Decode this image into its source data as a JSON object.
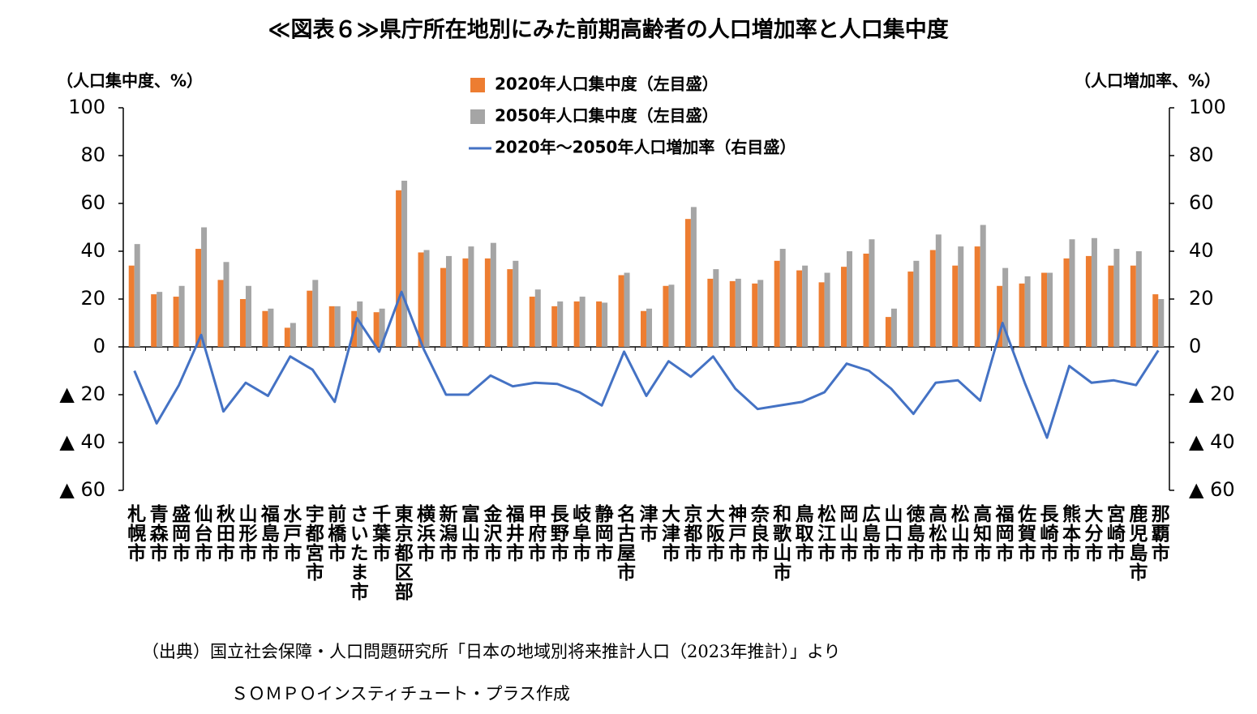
{
  "chart_data": {
    "type": "bar",
    "title": "≪図表６≫県庁所在地別にみた前期高齢者の人口増加率と人口集中度",
    "ylabel": "（人口集中度、%）",
    "y2label": "（人口増加率、%）",
    "categories": [
      "札幌市",
      "青森市",
      "盛岡市",
      "仙台市",
      "秋田市",
      "山形市",
      "福島市",
      "水戸市",
      "宇都宮市",
      "前橋市",
      "さいたま市",
      "千葉市",
      "東京都区部",
      "横浜市",
      "新潟市",
      "富山市",
      "金沢市",
      "福井市",
      "甲府市",
      "長野市",
      "岐阜市",
      "静岡市",
      "名古屋市",
      "津市",
      "大津市",
      "京都市",
      "大阪市",
      "神戸市",
      "奈良市",
      "和歌山市",
      "鳥取市",
      "松江市",
      "岡山市",
      "広島市",
      "山口市",
      "徳島市",
      "高松市",
      "松山市",
      "高知市",
      "福岡市",
      "佐賀市",
      "長崎市",
      "熊本市",
      "大分市",
      "宮崎市",
      "鹿児島市",
      "那覇市"
    ],
    "series": [
      {
        "name": "2020年人口集中度（左目盛）",
        "type": "bar",
        "color": "#ed7d31",
        "values": [
          34,
          22,
          21,
          41,
          28,
          20,
          15,
          8,
          23.5,
          17,
          15,
          14.5,
          65.5,
          39.5,
          33,
          37,
          37,
          32.5,
          21,
          17,
          19,
          19,
          30,
          15,
          25.5,
          53.5,
          28.5,
          27.5,
          26.5,
          36,
          32,
          27,
          33.5,
          39,
          12.5,
          31.5,
          40.5,
          34,
          42,
          25.5,
          26.5,
          31,
          37,
          38,
          34,
          34,
          22
        ]
      },
      {
        "name": "2050年人口集中度（左目盛）",
        "type": "bar",
        "color": "#a5a5a5",
        "values": [
          43,
          23,
          25.5,
          50,
          35.5,
          25.5,
          16,
          10,
          28,
          17,
          19,
          16,
          69.5,
          40.5,
          38,
          42,
          43.5,
          36,
          24,
          19,
          21,
          18.5,
          31,
          16,
          26,
          58.5,
          32.5,
          28.5,
          28,
          41,
          34,
          31,
          40,
          45,
          16,
          36,
          47,
          42,
          51,
          33,
          29.5,
          31,
          45,
          45.5,
          41,
          40,
          20
        ]
      },
      {
        "name": "2020年～2050年人口増加率（右目盛）",
        "type": "line",
        "axis": "y2",
        "color": "#4472c4",
        "values": [
          -10,
          -32,
          -16,
          5,
          -27,
          -15,
          -20.5,
          -4,
          -9.5,
          -23,
          12,
          -2,
          23,
          -1,
          -20,
          -20,
          -12,
          -16.5,
          -15,
          -15.5,
          -19,
          -24.5,
          -2,
          -20.5,
          -6,
          -12.5,
          -4,
          -17.5,
          -26,
          -24.5,
          -23,
          -19,
          -7,
          -10,
          -17.5,
          -28,
          -15,
          -14,
          -22.5,
          10,
          -15,
          -38,
          -8,
          -15,
          -14,
          -16,
          -1.5
        ]
      }
    ],
    "ylim": [
      -60,
      100
    ],
    "yticks": [
      100,
      80,
      60,
      40,
      20,
      0,
      {
        "value": -20,
        "label": "▲ 20"
      },
      {
        "value": -40,
        "label": "▲ 40"
      },
      {
        "value": -60,
        "label": "▲ 60"
      }
    ],
    "y2lim": [
      -60,
      100
    ],
    "y2ticks": [
      100,
      80,
      60,
      40,
      20,
      0,
      {
        "value": -20,
        "label": "▲ 20"
      },
      {
        "value": -40,
        "label": "▲ 40"
      },
      {
        "value": -60,
        "label": "▲ 60"
      }
    ],
    "legend": "top",
    "notes": [
      "（出典）国立社会保障・人口問題研究所「日本の地域別将来推計人口（2023年推計）」より",
      "ＳＯＭＰＯインスティチュート・プラス作成"
    ]
  }
}
